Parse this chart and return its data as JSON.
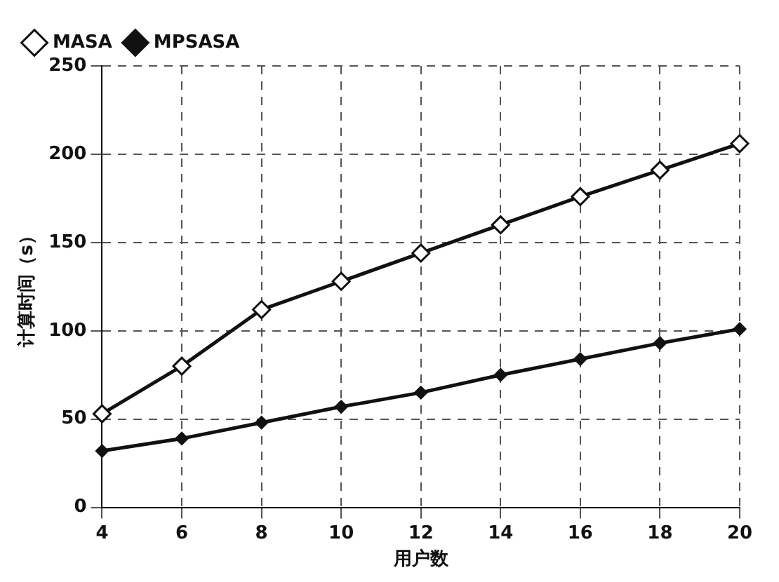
{
  "chart_data": {
    "type": "line",
    "xlabel": "用户数",
    "ylabel": "计算时间（s）",
    "x": [
      4,
      6,
      8,
      10,
      12,
      14,
      16,
      18,
      20
    ],
    "series": [
      {
        "name": "MASA",
        "color": "#111111",
        "marker": "diamond",
        "values": [
          53,
          80,
          112,
          128,
          144,
          160,
          176,
          191,
          206
        ]
      },
      {
        "name": "MPSASA",
        "color": "#111111",
        "marker": "diamond",
        "values": [
          32,
          39,
          48,
          57,
          65,
          75,
          84,
          93,
          101
        ]
      }
    ],
    "xlim": [
      4,
      20
    ],
    "xticks": [
      4,
      6,
      8,
      10,
      12,
      14,
      16,
      18,
      20
    ],
    "ylim": [
      0,
      250
    ],
    "yticks": [
      0,
      50,
      100,
      150,
      200,
      250
    ],
    "grid": true,
    "legend": "top left",
    "line_style": "solid"
  }
}
